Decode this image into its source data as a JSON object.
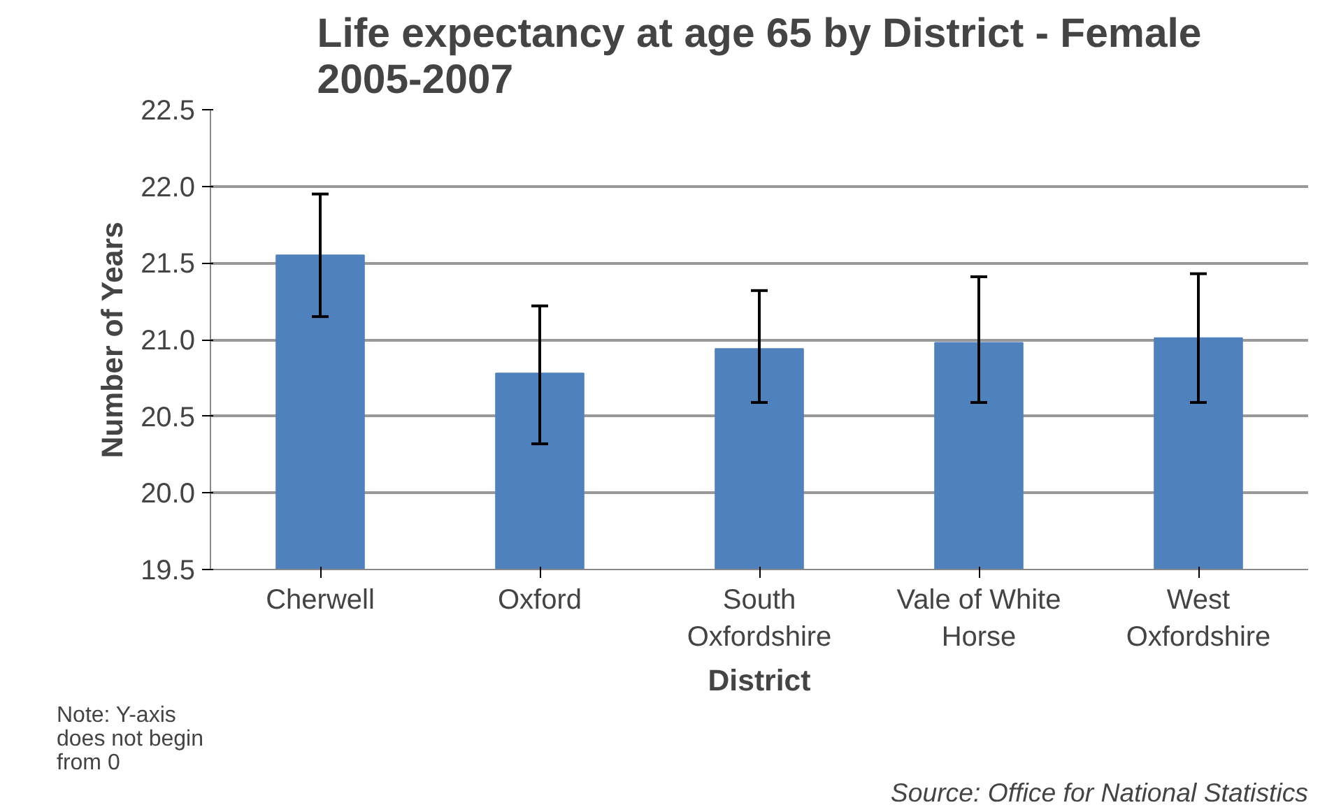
{
  "chart_data": {
    "type": "bar",
    "title": "Life expectancy at age 65 by District - Female\n2005-2007",
    "xlabel": "District",
    "ylabel": "Number of Years",
    "categories": [
      "Cherwell",
      "Oxford",
      "South\nOxfordshire",
      "Vale of White\nHorse",
      "West\nOxfordshire"
    ],
    "values": [
      21.55,
      20.78,
      20.94,
      20.98,
      21.01
    ],
    "errors": [
      [
        21.15,
        21.95
      ],
      [
        20.32,
        21.22
      ],
      [
        20.59,
        21.32
      ],
      [
        20.59,
        21.41
      ],
      [
        20.59,
        21.43
      ]
    ],
    "color": "#4f81bd",
    "ylim": [
      19.5,
      22.5
    ],
    "yticks": [
      {
        "value": 19.5,
        "label": "19.5"
      },
      {
        "value": 20,
        "label": "20.0"
      },
      {
        "value": 20.5,
        "label": "20.5"
      },
      {
        "value": 21,
        "label": "21.0"
      },
      {
        "value": 21.5,
        "label": "21.5"
      },
      {
        "value": 22,
        "label": "22.0"
      },
      {
        "value": 22.5,
        "label": "22.5"
      }
    ],
    "grid": "y",
    "annotations": [
      "Note: Y-axis\ndoes not begin\nfrom 0",
      "Source: Office for National Statistics"
    ]
  }
}
